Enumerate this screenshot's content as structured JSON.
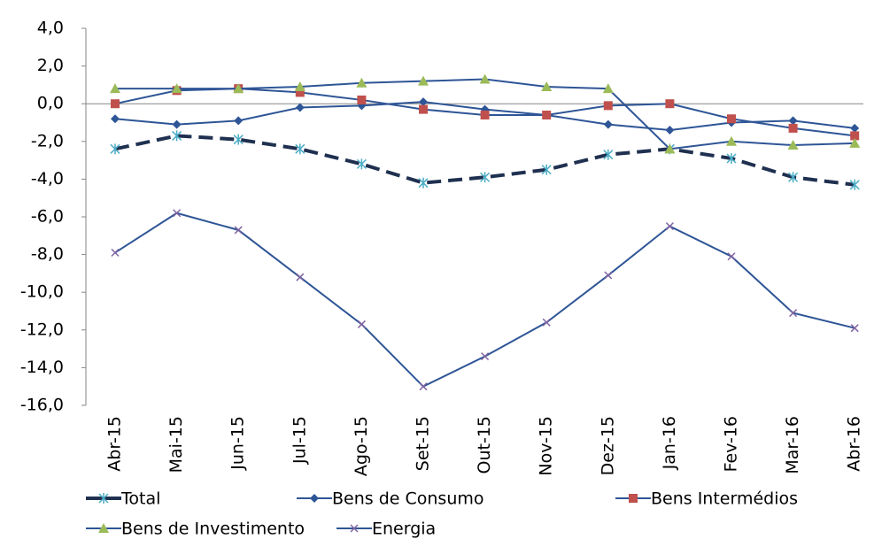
{
  "chart_data": {
    "type": "line",
    "categories": [
      "Abr-15",
      "Mai-15",
      "Jun-15",
      "Jul-15",
      "Ago-15",
      "Set-15",
      "Out-15",
      "Nov-15",
      "Dez-15",
      "Jan-16",
      "Fev-16",
      "Mar-16",
      "Abr-16"
    ],
    "ylim": [
      -16,
      4
    ],
    "yticks": [
      {
        "value": -16,
        "label": "-16,0"
      },
      {
        "value": -14,
        "label": "-14,0"
      },
      {
        "value": -12,
        "label": "-12,0"
      },
      {
        "value": -10,
        "label": "-10,0"
      },
      {
        "value": -8,
        "label": "-8,0"
      },
      {
        "value": -6,
        "label": "-6,0"
      },
      {
        "value": -4,
        "label": "-4,0"
      },
      {
        "value": -2,
        "label": "-2,0"
      },
      {
        "value": 0,
        "label": "0,0"
      },
      {
        "value": 2,
        "label": "2,0"
      },
      {
        "value": 4,
        "label": "4,0"
      }
    ],
    "legend": "bottom",
    "series": [
      {
        "name": "Total",
        "color": "#1f3050",
        "marker_color": "#4bacc6",
        "marker": "star",
        "dash": true,
        "values": [
          -2.4,
          -1.7,
          -1.9,
          -2.4,
          -3.2,
          -4.2,
          -3.9,
          -3.5,
          -2.7,
          -2.4,
          -2.9,
          -3.9,
          -4.3
        ]
      },
      {
        "name": "Bens de Consumo",
        "color": "#2e5596",
        "marker_color": "#2e5596",
        "marker": "diamond",
        "dash": false,
        "values": [
          -0.8,
          -1.1,
          -0.9,
          -0.2,
          -0.1,
          0.1,
          -0.3,
          -0.6,
          -1.1,
          -1.4,
          -1.0,
          -0.9,
          -1.3
        ]
      },
      {
        "name": "Bens Intermédios",
        "color": "#2e5596",
        "marker_color": "#c0504d",
        "marker": "square",
        "dash": false,
        "values": [
          0.0,
          0.7,
          0.8,
          0.6,
          0.2,
          -0.3,
          -0.6,
          -0.6,
          -0.1,
          0.0,
          -0.8,
          -1.3,
          -1.7
        ]
      },
      {
        "name": "Bens de Investimento",
        "color": "#2e5596",
        "marker_color": "#9bbb59",
        "marker": "triangle",
        "dash": false,
        "values": [
          0.8,
          0.8,
          0.8,
          0.9,
          1.1,
          1.2,
          1.3,
          0.9,
          0.8,
          -2.4,
          -2.0,
          -2.2,
          -2.1
        ]
      },
      {
        "name": "Energia",
        "color": "#2e5596",
        "marker_color": "#8064a2",
        "marker": "x",
        "dash": false,
        "values": [
          -7.9,
          -5.8,
          -6.7,
          -9.2,
          -11.7,
          -15.0,
          -13.4,
          -11.6,
          -9.1,
          -6.5,
          -8.1,
          -11.1,
          -11.9
        ]
      }
    ]
  }
}
